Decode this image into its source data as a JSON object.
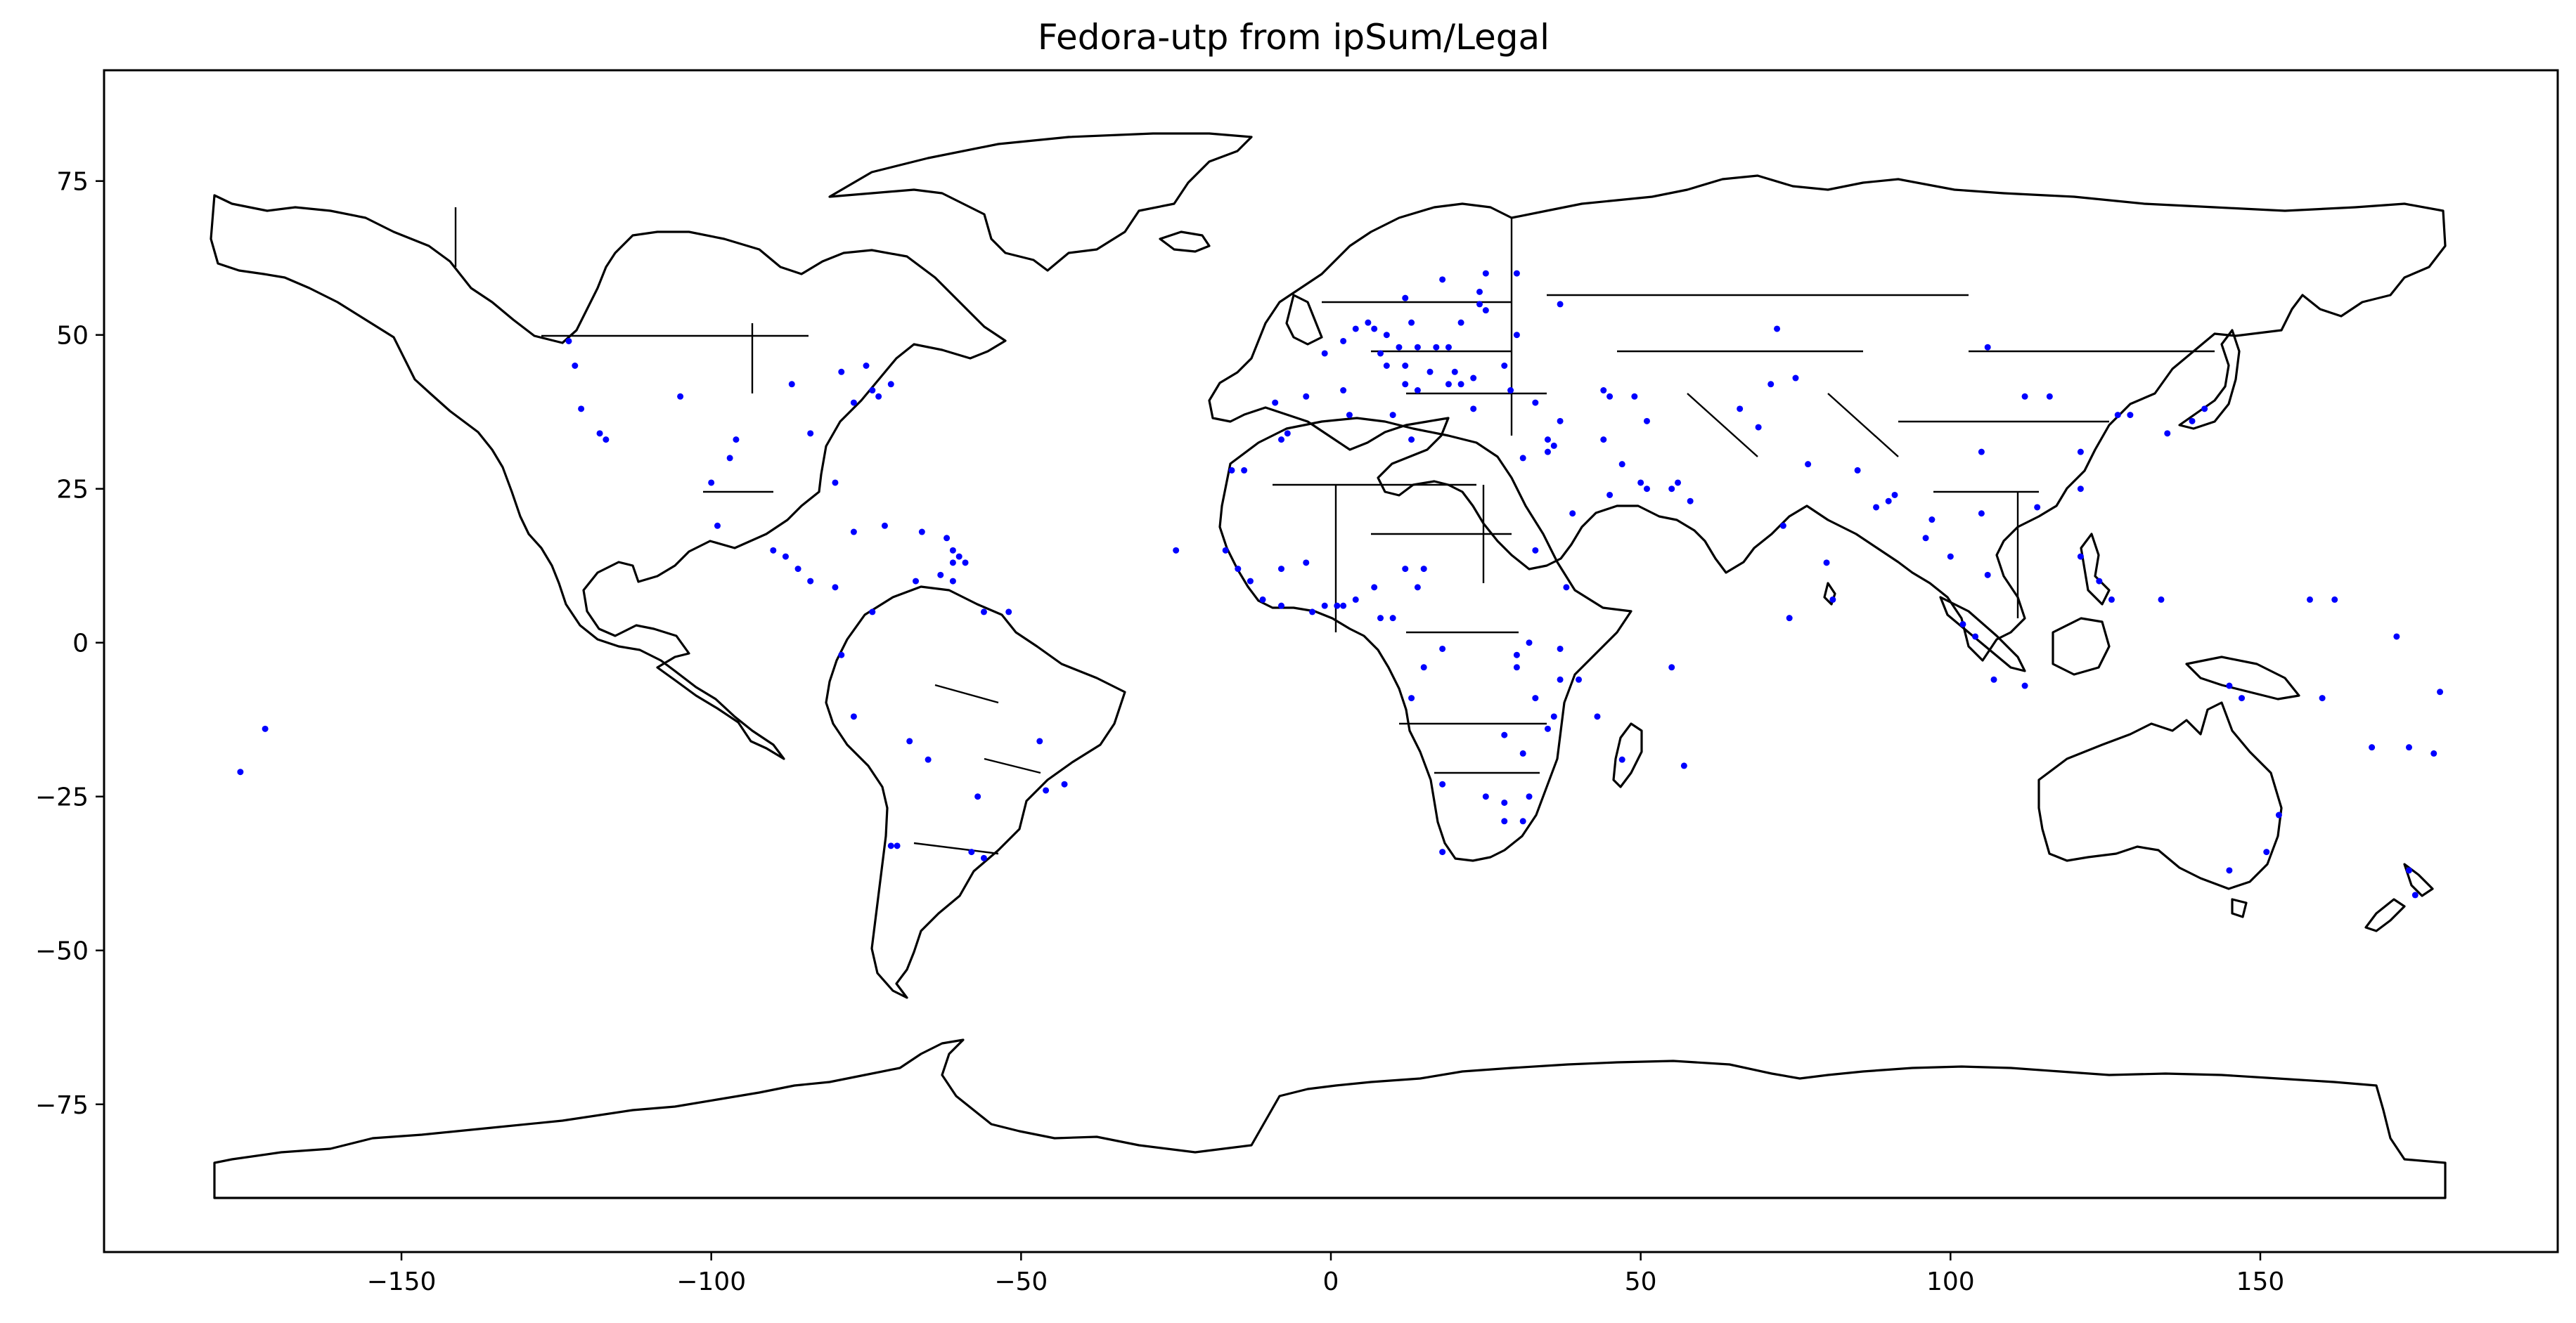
{
  "chart_data": {
    "type": "scatter",
    "title": "Fedora-utp from ipSum/Legal",
    "xlabel": "",
    "ylabel": "",
    "xlim": [
      -198,
      198
    ],
    "ylim": [
      -99,
      93
    ],
    "xticks": [
      -150,
      -100,
      -50,
      0,
      50,
      100,
      150
    ],
    "xtick_labels": [
      "−150",
      "−100",
      "−50",
      "0",
      "50",
      "100",
      "150"
    ],
    "yticks": [
      75,
      50,
      25,
      0,
      -25,
      -50,
      -75
    ],
    "ytick_labels": [
      "75",
      "50",
      "25",
      "0",
      "−25",
      "−50",
      "−75"
    ],
    "grid": false,
    "basemap": "world country outlines",
    "point_color": "#0000ff",
    "series": [
      {
        "points": [
          [
            -123,
            49
          ],
          [
            -122,
            45
          ],
          [
            -121,
            38
          ],
          [
            -118,
            34
          ],
          [
            -117,
            33
          ],
          [
            -105,
            40
          ],
          [
            -97,
            30
          ],
          [
            -96,
            33
          ],
          [
            -100,
            26
          ],
          [
            -99,
            19
          ],
          [
            -87,
            42
          ],
          [
            -84,
            34
          ],
          [
            -80,
            26
          ],
          [
            -77,
            39
          ],
          [
            -74,
            41
          ],
          [
            -75,
            45
          ],
          [
            -71,
            42
          ],
          [
            -79,
            44
          ],
          [
            -73,
            40
          ],
          [
            -90,
            15
          ],
          [
            -88,
            14
          ],
          [
            -86,
            12
          ],
          [
            -84,
            10
          ],
          [
            -80,
            9
          ],
          [
            -77,
            18
          ],
          [
            -72,
            19
          ],
          [
            -66,
            18
          ],
          [
            -61,
            15
          ],
          [
            -61,
            13
          ],
          [
            -60,
            14
          ],
          [
            -62,
            17
          ],
          [
            -59,
            13
          ],
          [
            -63,
            11
          ],
          [
            -61,
            10
          ],
          [
            -67,
            10
          ],
          [
            -74,
            5
          ],
          [
            -56,
            5
          ],
          [
            -52,
            5
          ],
          [
            -79,
            -2
          ],
          [
            -77,
            -12
          ],
          [
            -68,
            -16
          ],
          [
            -47,
            -16
          ],
          [
            -43,
            -23
          ],
          [
            -46,
            -24
          ],
          [
            -57,
            -25
          ],
          [
            -58,
            -34
          ],
          [
            -56,
            -35
          ],
          [
            -71,
            -33
          ],
          [
            -70,
            -33
          ],
          [
            -65,
            -19
          ],
          [
            -176,
            -21
          ],
          [
            -172,
            -14
          ],
          [
            -25,
            15
          ],
          [
            -17,
            15
          ],
          [
            -15,
            12
          ],
          [
            -13,
            10
          ],
          [
            -11,
            7
          ],
          [
            -8,
            6
          ],
          [
            -3,
            5
          ],
          [
            -1,
            6
          ],
          [
            1,
            6
          ],
          [
            2,
            6
          ],
          [
            4,
            7
          ],
          [
            7,
            9
          ],
          [
            8,
            4
          ],
          [
            10,
            4
          ],
          [
            12,
            12
          ],
          [
            15,
            12
          ],
          [
            14,
            9
          ],
          [
            -4,
            13
          ],
          [
            -8,
            12
          ],
          [
            -8,
            33
          ],
          [
            -7,
            34
          ],
          [
            3,
            37
          ],
          [
            10,
            37
          ],
          [
            13,
            33
          ],
          [
            -16,
            28
          ],
          [
            -14,
            28
          ],
          [
            -9,
            39
          ],
          [
            -4,
            40
          ],
          [
            2,
            41
          ],
          [
            -1,
            47
          ],
          [
            2,
            49
          ],
          [
            4,
            51
          ],
          [
            6,
            52
          ],
          [
            7,
            51
          ],
          [
            9,
            50
          ],
          [
            13,
            52
          ],
          [
            11,
            48
          ],
          [
            14,
            48
          ],
          [
            17,
            48
          ],
          [
            19,
            48
          ],
          [
            21,
            52
          ],
          [
            25,
            54
          ],
          [
            24,
            55
          ],
          [
            25,
            60
          ],
          [
            18,
            59
          ],
          [
            12,
            56
          ],
          [
            24,
            57
          ],
          [
            30,
            50
          ],
          [
            28,
            45
          ],
          [
            23,
            43
          ],
          [
            21,
            42
          ],
          [
            20,
            44
          ],
          [
            16,
            44
          ],
          [
            12,
            42
          ],
          [
            14,
            41
          ],
          [
            9,
            45
          ],
          [
            8,
            47
          ],
          [
            12,
            45
          ],
          [
            19,
            42
          ],
          [
            23,
            38
          ],
          [
            29,
            41
          ],
          [
            33,
            39
          ],
          [
            35,
            33
          ],
          [
            36,
            32
          ],
          [
            35,
            31
          ],
          [
            31,
            30
          ],
          [
            37,
            36
          ],
          [
            44,
            41
          ],
          [
            45,
            40
          ],
          [
            49,
            40
          ],
          [
            51,
            36
          ],
          [
            44,
            33
          ],
          [
            47,
            29
          ],
          [
            51,
            25
          ],
          [
            50,
            26
          ],
          [
            55,
            25
          ],
          [
            56,
            26
          ],
          [
            58,
            23
          ],
          [
            45,
            24
          ],
          [
            39,
            21
          ],
          [
            37,
            55
          ],
          [
            30,
            60
          ],
          [
            33,
            15
          ],
          [
            38,
            9
          ],
          [
            32,
            0
          ],
          [
            37,
            -1
          ],
          [
            37,
            -6
          ],
          [
            30,
            -2
          ],
          [
            36,
            -12
          ],
          [
            30,
            -4
          ],
          [
            33,
            -9
          ],
          [
            18,
            -1
          ],
          [
            15,
            -4
          ],
          [
            13,
            -9
          ],
          [
            28,
            -15
          ],
          [
            35,
            -14
          ],
          [
            31,
            -18
          ],
          [
            32,
            -25
          ],
          [
            28,
            -26
          ],
          [
            28,
            -29
          ],
          [
            31,
            -29
          ],
          [
            25,
            -25
          ],
          [
            18,
            -23
          ],
          [
            18,
            -34
          ],
          [
            47,
            -19
          ],
          [
            55,
            -4
          ],
          [
            57,
            -20
          ],
          [
            40,
            -6
          ],
          [
            43,
            -12
          ],
          [
            69,
            35
          ],
          [
            71,
            42
          ],
          [
            66,
            38
          ],
          [
            72,
            51
          ],
          [
            75,
            43
          ],
          [
            77,
            29
          ],
          [
            73,
            19
          ],
          [
            80,
            13
          ],
          [
            81,
            7
          ],
          [
            74,
            4
          ],
          [
            85,
            28
          ],
          [
            88,
            22
          ],
          [
            90,
            23
          ],
          [
            91,
            24
          ],
          [
            96,
            17
          ],
          [
            97,
            20
          ],
          [
            100,
            14
          ],
          [
            105,
            21
          ],
          [
            106,
            11
          ],
          [
            102,
            3
          ],
          [
            104,
            1
          ],
          [
            107,
            -6
          ],
          [
            112,
            -7
          ],
          [
            114,
            22
          ],
          [
            121,
            31
          ],
          [
            121,
            25
          ],
          [
            121,
            14
          ],
          [
            124,
            10
          ],
          [
            126,
            7
          ],
          [
            116,
            40
          ],
          [
            106,
            48
          ],
          [
            129,
            37
          ],
          [
            127,
            37
          ],
          [
            139,
            36
          ],
          [
            135,
            34
          ],
          [
            141,
            38
          ],
          [
            134,
            7
          ],
          [
            145,
            -7
          ],
          [
            147,
            -9
          ],
          [
            153,
            -28
          ],
          [
            145,
            -37
          ],
          [
            151,
            -34
          ],
          [
            158,
            7
          ],
          [
            162,
            7
          ],
          [
            168,
            -17
          ],
          [
            172,
            1
          ],
          [
            174,
            -17
          ],
          [
            178,
            -18
          ],
          [
            179,
            -8
          ],
          [
            175,
            -41
          ],
          [
            160,
            -9
          ],
          [
            105,
            31
          ],
          [
            112,
            40
          ],
          [
            174,
            -37
          ]
        ]
      }
    ]
  }
}
